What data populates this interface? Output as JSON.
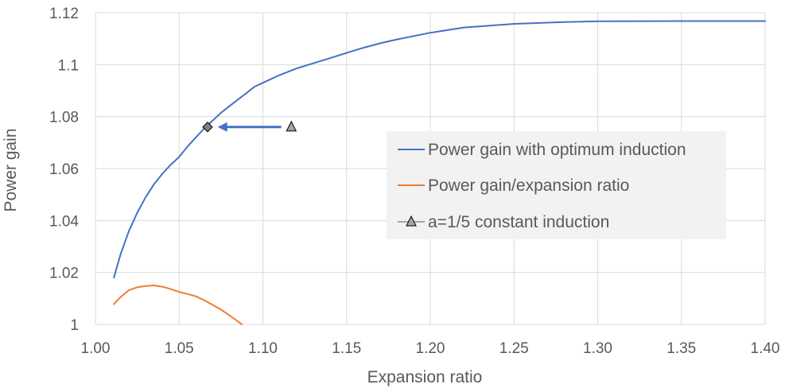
{
  "chart_data": {
    "type": "line",
    "title": "",
    "xlabel": "Expansion ratio",
    "ylabel": "Power gain",
    "xlim": [
      1.0,
      1.4
    ],
    "ylim": [
      1.0,
      1.12
    ],
    "xticks": [
      "1.00",
      "1.05",
      "1.10",
      "1.15",
      "1.20",
      "1.25",
      "1.30",
      "1.35",
      "1.40"
    ],
    "yticks": [
      "1",
      "1.02",
      "1.04",
      "1.06",
      "1.08",
      "1.1",
      "1.12"
    ],
    "grid": true,
    "legend_position": "right",
    "series": [
      {
        "name": "Power gain with optimum induction",
        "color": "#4472C4",
        "x": [
          1.011,
          1.015,
          1.02,
          1.025,
          1.03,
          1.035,
          1.04,
          1.045,
          1.05,
          1.055,
          1.06,
          1.065,
          1.07,
          1.075,
          1.08,
          1.085,
          1.09,
          1.095,
          1.1,
          1.11,
          1.12,
          1.13,
          1.14,
          1.15,
          1.16,
          1.17,
          1.18,
          1.2,
          1.22,
          1.25,
          1.28,
          1.3,
          1.35,
          1.4
        ],
        "y": [
          1.018,
          1.027,
          1.036,
          1.043,
          1.049,
          1.054,
          1.058,
          1.0615,
          1.0645,
          1.0685,
          1.072,
          1.0755,
          1.0785,
          1.0815,
          1.084,
          1.0865,
          1.089,
          1.0915,
          1.093,
          1.096,
          1.0985,
          1.1005,
          1.1025,
          1.1045,
          1.1065,
          1.1082,
          1.1097,
          1.1123,
          1.1143,
          1.1157,
          1.1164,
          1.1167,
          1.1168,
          1.1168
        ]
      },
      {
        "name": "Power gain/expansion ratio",
        "color": "#ED7D31",
        "x": [
          1.011,
          1.015,
          1.02,
          1.025,
          1.03,
          1.035,
          1.04,
          1.045,
          1.05,
          1.055,
          1.06,
          1.065,
          1.07,
          1.075,
          1.08,
          1.0875
        ],
        "y": [
          1.0078,
          1.0105,
          1.0132,
          1.0143,
          1.0148,
          1.015,
          1.0145,
          1.0136,
          1.0125,
          1.0117,
          1.0108,
          1.0093,
          1.0075,
          1.0057,
          1.0035,
          1.0
        ]
      },
      {
        "name": "a=1/5 constant induction",
        "color": "#A5A5A5",
        "marker": "triangle",
        "x": [
          1.117
        ],
        "y": [
          1.076
        ]
      }
    ],
    "annotations": [
      {
        "type": "diamond-marker",
        "x": 1.067,
        "y": 1.076,
        "color": "#808080"
      },
      {
        "type": "arrow",
        "from": [
          1.111,
          1.076
        ],
        "to": [
          1.073,
          1.076
        ],
        "color": "#4472C4"
      }
    ]
  },
  "legend": {
    "items": [
      "Power gain with optimum induction",
      "Power gain/expansion ratio",
      "a=1/5 constant induction"
    ]
  }
}
